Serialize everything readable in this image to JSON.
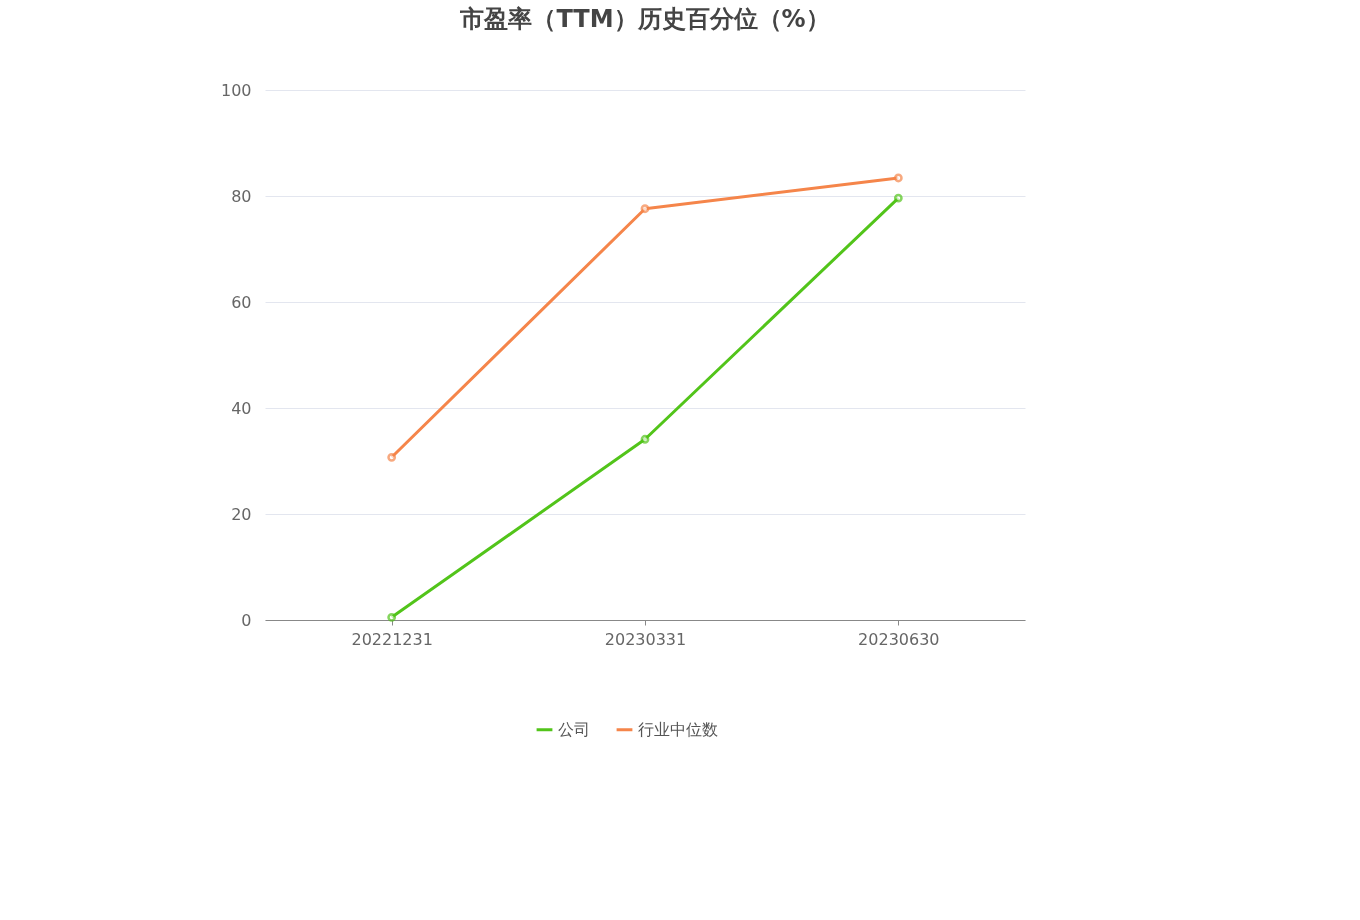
{
  "chart_data": {
    "type": "line",
    "title": "市盈率（TTM）历史百分位（%）",
    "categories": [
      "20221231",
      "20230331",
      "20230630"
    ],
    "series": [
      {
        "name": "公司",
        "color": "#52c41a",
        "values": [
          0.5,
          34.1,
          79.6
        ]
      },
      {
        "name": "行业中位数",
        "color": "#f5854a",
        "values": [
          30.7,
          77.6,
          83.4
        ]
      }
    ],
    "ylim": [
      0,
      100
    ],
    "yticks": [
      0,
      20,
      40,
      60,
      80,
      100
    ],
    "grid": "y",
    "legend": "bottom",
    "marker": "circle",
    "line_style": "solid"
  }
}
